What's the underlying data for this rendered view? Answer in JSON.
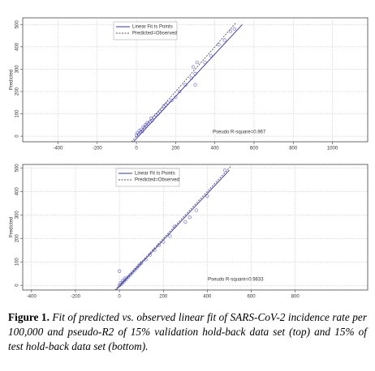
{
  "chart_data": [
    {
      "type": "scatter",
      "y_label": "Predicted",
      "annotation": "Pseudo R-square=0.967",
      "xlim": [
        -580,
        1180
      ],
      "ylim": [
        -25,
        530
      ],
      "xticks": [
        -400,
        -200,
        0,
        200,
        400,
        600,
        800,
        1000
      ],
      "yticks": [
        0,
        100,
        200,
        300,
        400,
        500
      ],
      "grid": true,
      "series": [
        {
          "color": "#7878d8",
          "x": [
            0,
            5,
            10,
            15,
            20,
            25,
            30,
            35,
            40,
            45,
            50,
            55,
            60,
            70,
            75,
            80,
            90,
            100,
            110,
            120,
            130,
            140,
            150,
            160,
            180,
            200,
            220,
            250,
            280,
            290,
            300,
            300,
            310,
            350,
            380,
            420,
            450,
            480,
            500
          ],
          "values": [
            5,
            15,
            8,
            25,
            18,
            30,
            22,
            40,
            35,
            50,
            45,
            60,
            55,
            65,
            80,
            70,
            85,
            95,
            100,
            110,
            120,
            135,
            140,
            150,
            160,
            175,
            200,
            230,
            260,
            310,
            280,
            230,
            330,
            330,
            360,
            410,
            430,
            470,
            480
          ]
        },
        {
          "type": "line",
          "name": "Linear Fit ts Points",
          "color": "#3434a8",
          "x": [
            -15,
            540
          ],
          "values": [
            -25,
            500
          ]
        },
        {
          "type": "line",
          "name": "Predicted=Observed",
          "color": "#555555",
          "dash": true,
          "x": [
            -25,
            510
          ],
          "values": [
            -25,
            510
          ]
        }
      ]
    },
    {
      "type": "scatter",
      "y_label": "Predicted",
      "annotation": "Pseudo R-square=0.9833",
      "xlim": [
        -440,
        1130
      ],
      "ylim": [
        -20,
        515
      ],
      "xticks": [
        -400,
        -200,
        0,
        200,
        400,
        600,
        800
      ],
      "yticks": [
        0,
        100,
        200,
        300,
        400,
        500
      ],
      "grid": true,
      "series": [
        {
          "color": "#7878d8",
          "x": [
            0,
            5,
            10,
            0,
            15,
            20,
            25,
            30,
            40,
            50,
            60,
            70,
            80,
            90,
            100,
            120,
            140,
            160,
            180,
            200,
            230,
            250,
            300,
            320,
            350,
            400,
            480
          ],
          "values": [
            0,
            10,
            5,
            60,
            20,
            15,
            30,
            25,
            35,
            45,
            55,
            65,
            75,
            85,
            95,
            110,
            130,
            150,
            170,
            185,
            210,
            250,
            270,
            290,
            320,
            380,
            490
          ]
        },
        {
          "type": "line",
          "name": "Linear Fit ts Points",
          "color": "#3434a8",
          "x": [
            -20,
            500
          ],
          "values": [
            -25,
            490
          ]
        },
        {
          "type": "line",
          "name": "Predicted=Observed",
          "color": "#555555",
          "dash": true,
          "x": [
            -20,
            510
          ],
          "values": [
            -20,
            510
          ]
        }
      ]
    }
  ],
  "caption": {
    "label": "Figure 1.",
    "text": "Fit of predicted vs. observed linear fit of SARS-CoV-2 incidence rate per 100,000 and pseudo-R2 of 15% validation hold-back data set (top) and 15% of test hold-back data set (bottom)."
  }
}
